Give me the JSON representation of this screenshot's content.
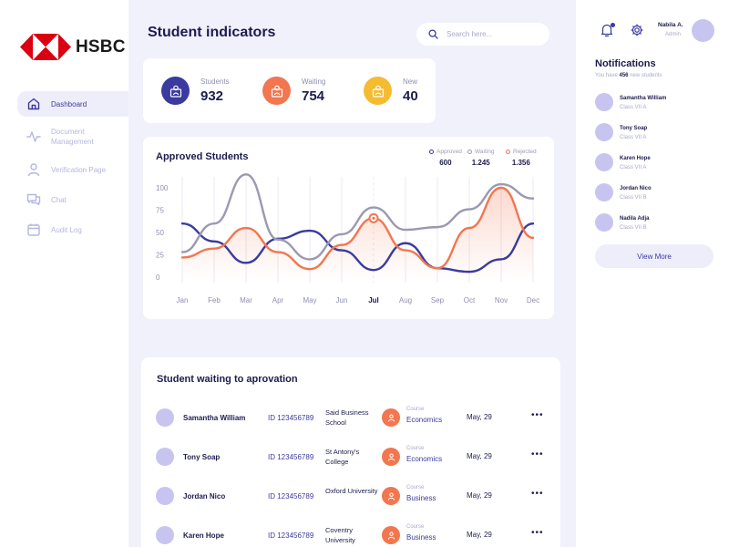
{
  "brand": {
    "name": "HSBC",
    "colors": {
      "red": "#db0011",
      "white": "#ffffff"
    }
  },
  "sidebar": {
    "items": [
      {
        "label": "Dashboard",
        "icon": "home-icon",
        "active": true
      },
      {
        "label": "Document Management",
        "icon": "pulse-icon",
        "active": false
      },
      {
        "label": "Verification Page",
        "icon": "user-icon",
        "active": false
      },
      {
        "label": "Chat",
        "icon": "chat-icon",
        "active": false
      },
      {
        "label": "Audit Log",
        "icon": "calendar-icon",
        "active": false
      }
    ]
  },
  "header": {
    "title": "Student indicators",
    "search_placeholder": "Search here..."
  },
  "stats": [
    {
      "label": "Students",
      "value": "932",
      "color": "#3b3a9e"
    },
    {
      "label": "Waiting",
      "value": "754",
      "color": "#f2764f"
    },
    {
      "label": "New",
      "value": "40",
      "color": "#f5bb31"
    }
  ],
  "chart": {
    "title": "Approved Students",
    "legend": [
      {
        "label": "Approved",
        "value": "600",
        "color": "#3b3a9e"
      },
      {
        "label": "Waiting",
        "value": "1.245",
        "color": "#9a99b0"
      },
      {
        "label": "Rejected",
        "value": "1.356",
        "color": "#f2764f"
      }
    ]
  },
  "chart_data": {
    "type": "line",
    "title": "Approved Students",
    "categories": [
      "Jan",
      "Feb",
      "Mar",
      "Apr",
      "May",
      "Jun",
      "Jul",
      "Aug",
      "Sep",
      "Oct",
      "Nov",
      "Dec"
    ],
    "highlight_category": "Jul",
    "yticks": [
      0,
      25,
      50,
      75,
      100
    ],
    "ylim": [
      0,
      100
    ],
    "grid": "vertical",
    "legend_position": "top-right",
    "series": [
      {
        "name": "Approved",
        "color": "#3b3a9e",
        "values": [
          60,
          40,
          16,
          43,
          52,
          30,
          8,
          38,
          10,
          6,
          20,
          60
        ]
      },
      {
        "name": "Waiting",
        "color": "#9a99b0",
        "values": [
          28,
          60,
          115,
          42,
          20,
          48,
          78,
          53,
          56,
          76,
          104,
          88
        ]
      },
      {
        "name": "Rejected",
        "color": "#f2764f",
        "values": [
          22,
          32,
          55,
          28,
          9,
          36,
          66,
          30,
          10,
          55,
          100,
          44
        ]
      }
    ]
  },
  "table": {
    "title": "Student waiting to aprovation",
    "course_label": "Course",
    "rows": [
      {
        "name": "Samantha William",
        "id": "ID 123456789",
        "school": "Said Business School",
        "course": "Economics",
        "date": "May, 29"
      },
      {
        "name": "Tony Soap",
        "id": "ID 123456789",
        "school": "St Antony's College",
        "course": "Economics",
        "date": "May, 29"
      },
      {
        "name": "Jordan Nico",
        "id": "ID 123456789",
        "school": "Oxford University",
        "course": "Business",
        "date": "May, 29"
      },
      {
        "name": "Karen Hope",
        "id": "ID 123456789",
        "school": "Coventry University",
        "course": "Business",
        "date": "May, 29"
      }
    ]
  },
  "user": {
    "name": "Nabila A.",
    "role": "Admin"
  },
  "notifications": {
    "title": "Notifications",
    "sub_prefix": "You have",
    "count": "456",
    "sub_suffix": "new students",
    "items": [
      {
        "name": "Samantha William",
        "class": "Class VII A"
      },
      {
        "name": "Tony Soap",
        "class": "Class VII A"
      },
      {
        "name": "Karen Hope",
        "class": "Class VII A"
      },
      {
        "name": "Jordan Nico",
        "class": "Class VII B"
      },
      {
        "name": "Nadila Adja",
        "class": "Class VII B"
      }
    ],
    "view_more": "View More"
  }
}
